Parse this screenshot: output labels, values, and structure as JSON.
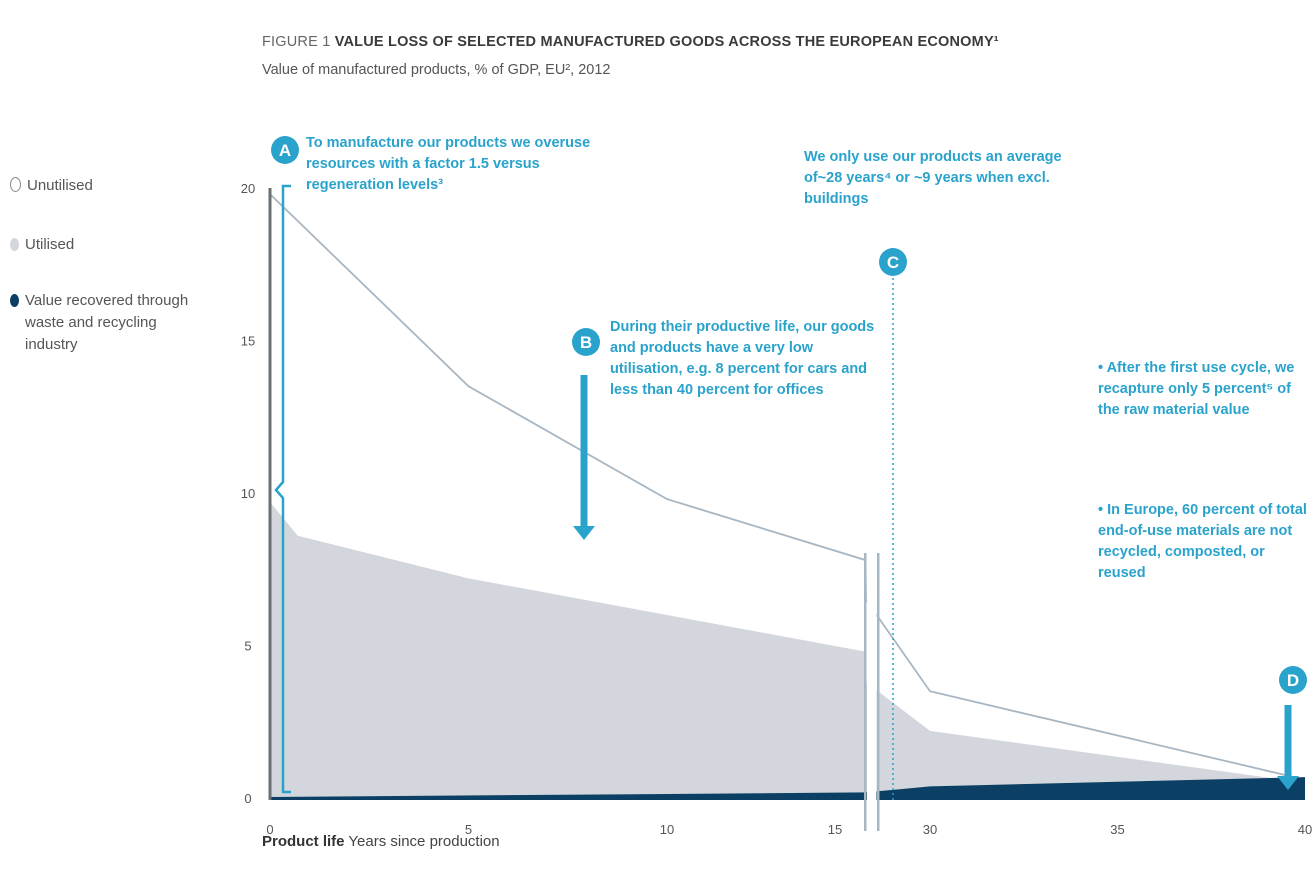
{
  "title": {
    "prefix": "FIGURE 1",
    "main": "VALUE LOSS OF SELECTED MANUFACTURED GOODS ACROSS THE EUROPEAN ECONOMY¹"
  },
  "subtitle": "Value of manufactured products, % of GDP, EU², 2012",
  "legend": [
    {
      "label": "Unutilised",
      "color": "#ffffff"
    },
    {
      "label": "Utilised",
      "color": "#d3d6dc"
    },
    {
      "label": "Value recovered through waste and recycling industry",
      "color": "#0b3f63"
    }
  ],
  "annotations": {
    "A": {
      "badge": "A",
      "text": "To manufacture our products we overuse resources with a factor 1.5 versus regeneration levels³"
    },
    "B": {
      "badge": "B",
      "text": "During their productive life, our goods and products have a very low utilisation, e.g. 8 percent for cars and less than 40 percent for offices"
    },
    "C": {
      "badge": "C",
      "text": "We only use our products an average of~28 years⁴ or ~9 years when excl. buildings"
    },
    "D": {
      "badge": "D",
      "text1": "• After the first use cycle, we recapture only 5 percent⁵ of the raw material value",
      "text2": "• In Europe, 60 percent of total end-of-use materials are not recycled, composted, or reused"
    }
  },
  "xlabel": {
    "bold": "Product life",
    "rest": " Years since production"
  },
  "colors": {
    "accent": "#2aa3cc",
    "utilised": "#d3d6dc",
    "recovered": "#0b3f63",
    "line": "#a8b6c2",
    "axis": "#6b7075"
  },
  "chart_data": {
    "type": "area",
    "x_ticks": [
      "0",
      "5",
      "10",
      "15",
      "30",
      "35",
      "40"
    ],
    "y_ticks": [
      "0",
      "5",
      "10",
      "15",
      "20"
    ],
    "ylim": [
      0,
      20
    ],
    "x_axis_break": "between 15 and 30",
    "series": [
      {
        "name": "Unutilised",
        "x": [
          0,
          5,
          10,
          15,
          16,
          30,
          40
        ],
        "values": [
          19.8,
          13.5,
          9.8,
          7.8,
          6.5,
          3.5,
          0.6
        ]
      },
      {
        "name": "Utilised",
        "x": [
          0,
          0.7,
          5,
          10,
          15,
          16,
          30,
          40
        ],
        "values": [
          9.7,
          8.6,
          7.2,
          6.0,
          4.8,
          3.8,
          2.2,
          0.5
        ]
      },
      {
        "name": "Value recovered through waste and recycling industry",
        "x": [
          0,
          15,
          30,
          40
        ],
        "values": [
          0,
          0.15,
          0.35,
          0.65
        ]
      }
    ]
  }
}
